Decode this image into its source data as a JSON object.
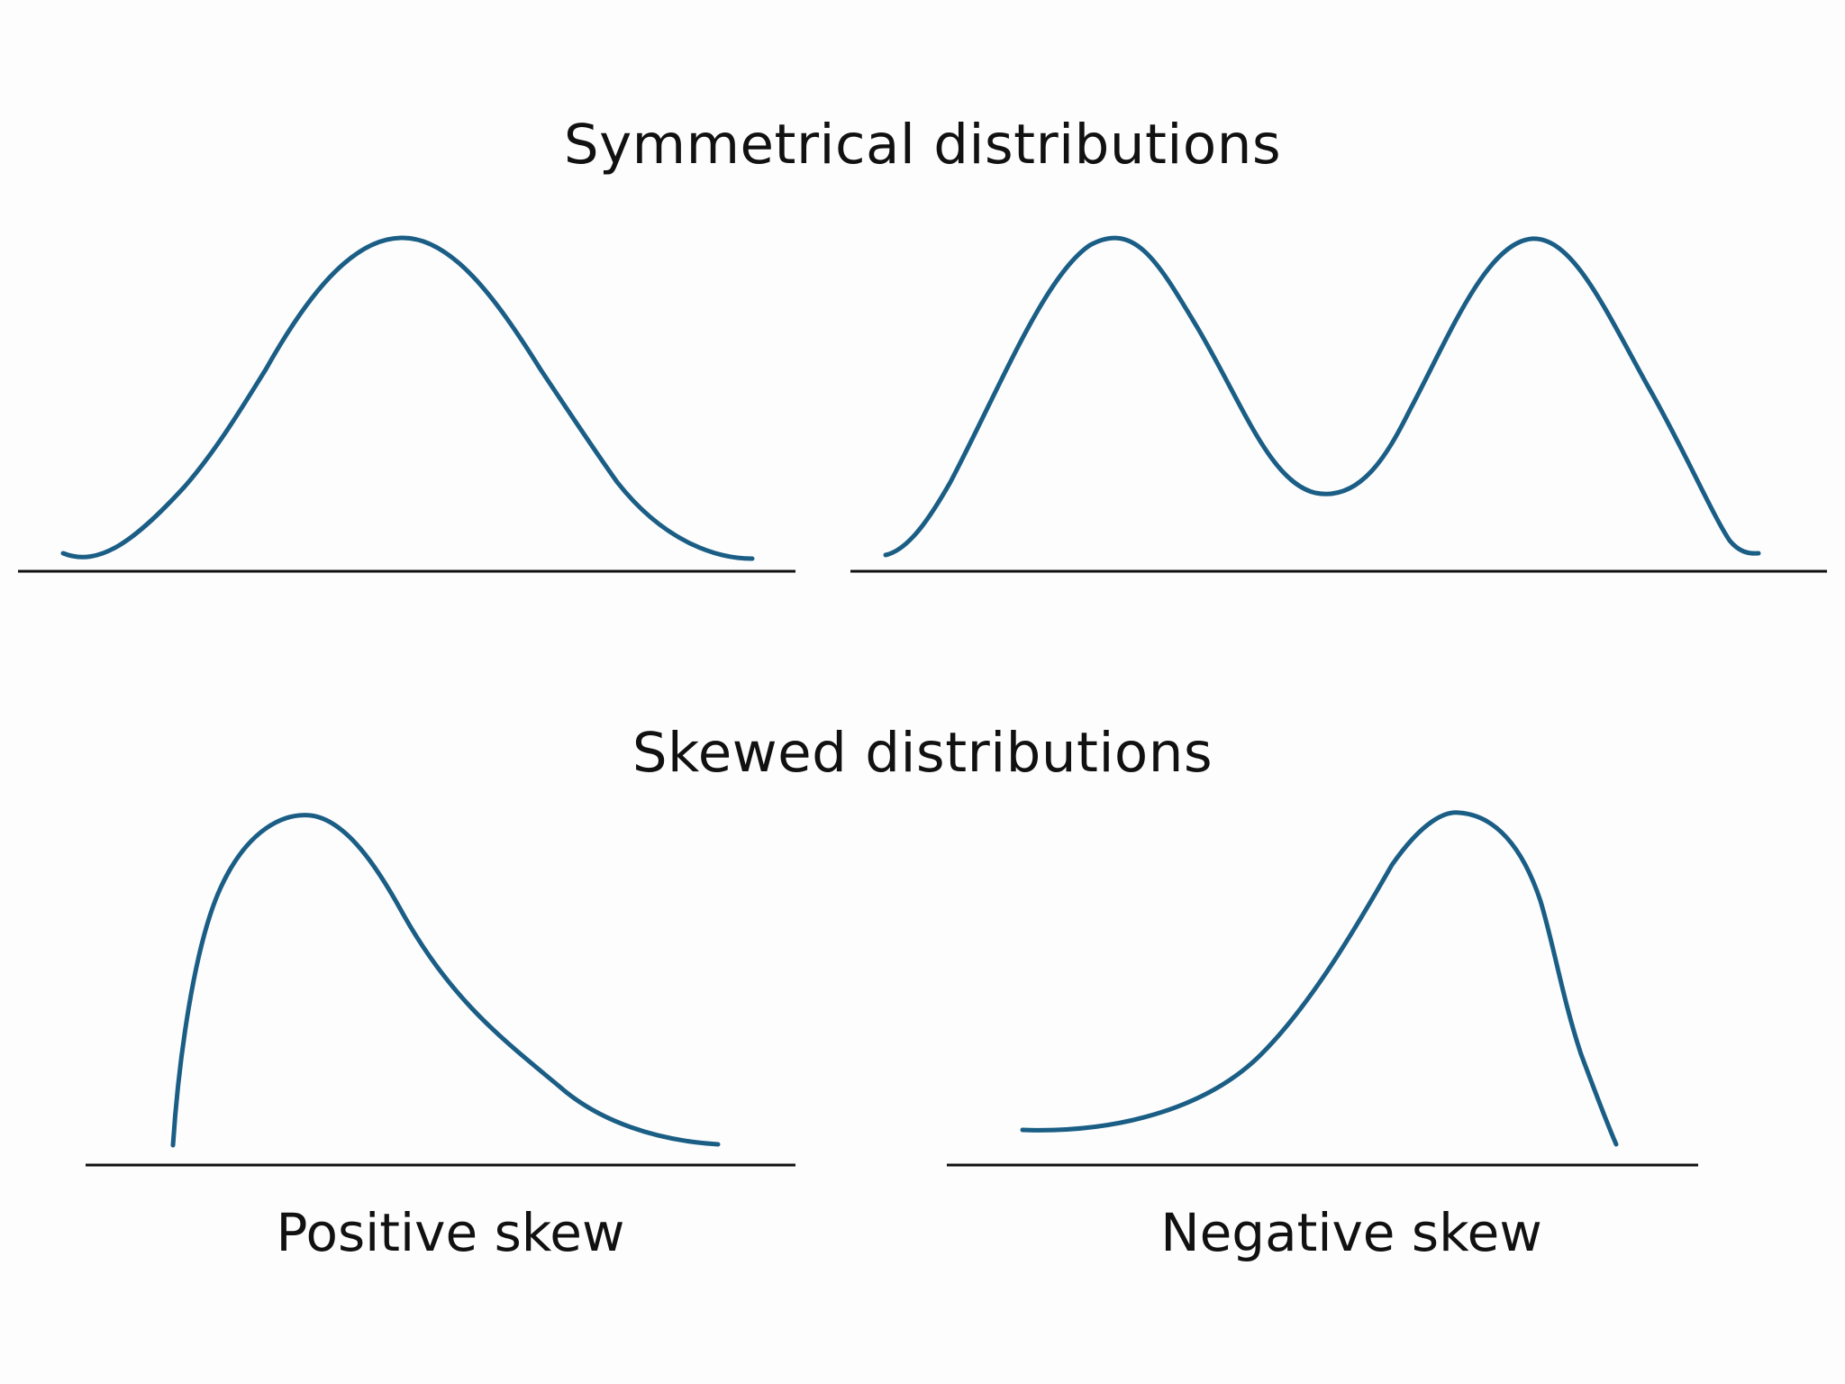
{
  "headings": {
    "symmetrical": "Symmetrical distributions",
    "skewed": "Skewed distributions"
  },
  "captions": {
    "positive": "Positive skew",
    "negative": "Negative skew"
  },
  "colors": {
    "curve": "#1b5e85",
    "axis": "#111111",
    "text": "#111111",
    "background": "#fdfdfe"
  },
  "panels": [
    {
      "id": "normal",
      "shape": "unimodal-symmetric"
    },
    {
      "id": "bimodal",
      "shape": "bimodal-symmetric"
    },
    {
      "id": "positive-skew",
      "shape": "right-skewed"
    },
    {
      "id": "negative-skew",
      "shape": "left-skewed"
    }
  ]
}
